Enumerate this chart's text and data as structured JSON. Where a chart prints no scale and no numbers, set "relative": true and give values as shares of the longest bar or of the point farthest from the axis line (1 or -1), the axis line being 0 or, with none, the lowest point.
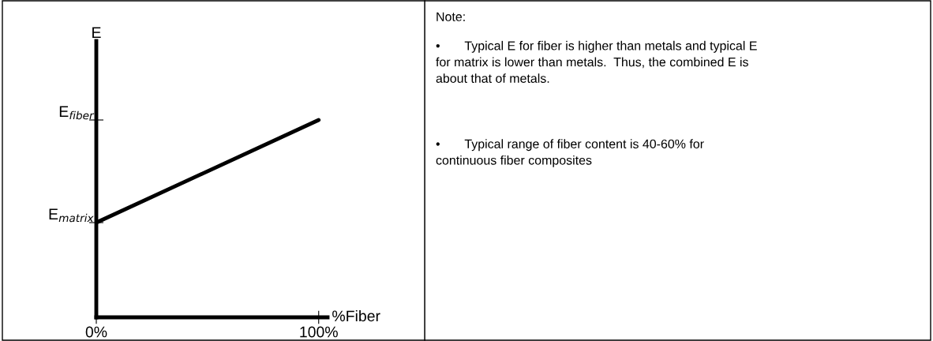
{
  "chart_data": {
    "type": "line",
    "relative": true,
    "x": [
      0,
      100
    ],
    "series": [
      {
        "color": "#000000",
        "values": [
          0.48,
          1
        ]
      }
    ],
    "xlim": [
      0,
      104
    ],
    "xticks": [
      {
        "value": 0,
        "label": "0%"
      },
      {
        "value": 100,
        "label": "100%"
      }
    ],
    "xlabel": "%Fiber",
    "tick_labels": "x",
    "marker": "none",
    "line_style": "solid",
    "grid": false,
    "legend": false,
    "annotations": [
      {
        "text": "E$_{matrix}$",
        "x": 0,
        "y": 0.48
      },
      "E",
      "E$_{fiber}$",
      "Note:",
      "•       Typical E for fiber is higher than metals and typical E for matrix is lower than metals.  Thus, the combined E is about that of metals.",
      "•       Typical range of fiber content is 40-60% for continuous fiber composites"
    ]
  }
}
